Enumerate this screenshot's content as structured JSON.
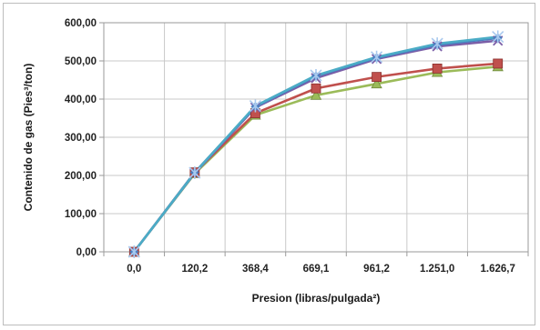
{
  "chart_data": {
    "type": "line",
    "title": "",
    "xlabel": "Presion (libras/pulgada²)",
    "ylabel": "Contenido de gas (Pies³/ton)",
    "categories": [
      "0,0",
      "120,2",
      "368,4",
      "669,1",
      "961,2",
      "1.251,0",
      "1.626,7"
    ],
    "ylim": [
      0,
      600
    ],
    "y_ticks": [
      "0,00",
      "100,00",
      "200,00",
      "300,00",
      "400,00",
      "500,00",
      "600,00"
    ],
    "grid": true,
    "legend": "none",
    "series": [
      {
        "color": "#4a7fc1",
        "marker": "diamond",
        "values": [
          0,
          208,
          380,
          460,
          508,
          542,
          560
        ]
      },
      {
        "color": "#c0504d",
        "marker": "square",
        "values": [
          0,
          208,
          363,
          428,
          458,
          480,
          493
        ]
      },
      {
        "color": "#9bbb59",
        "marker": "triangle",
        "values": [
          0,
          205,
          358,
          410,
          440,
          470,
          485
        ]
      },
      {
        "color": "#7b5ea7",
        "marker": "x",
        "values": [
          0,
          206,
          378,
          455,
          505,
          538,
          553
        ]
      },
      {
        "color": "#4bacc6",
        "marker": "star",
        "values": [
          0,
          207,
          382,
          462,
          510,
          545,
          563
        ]
      }
    ]
  }
}
